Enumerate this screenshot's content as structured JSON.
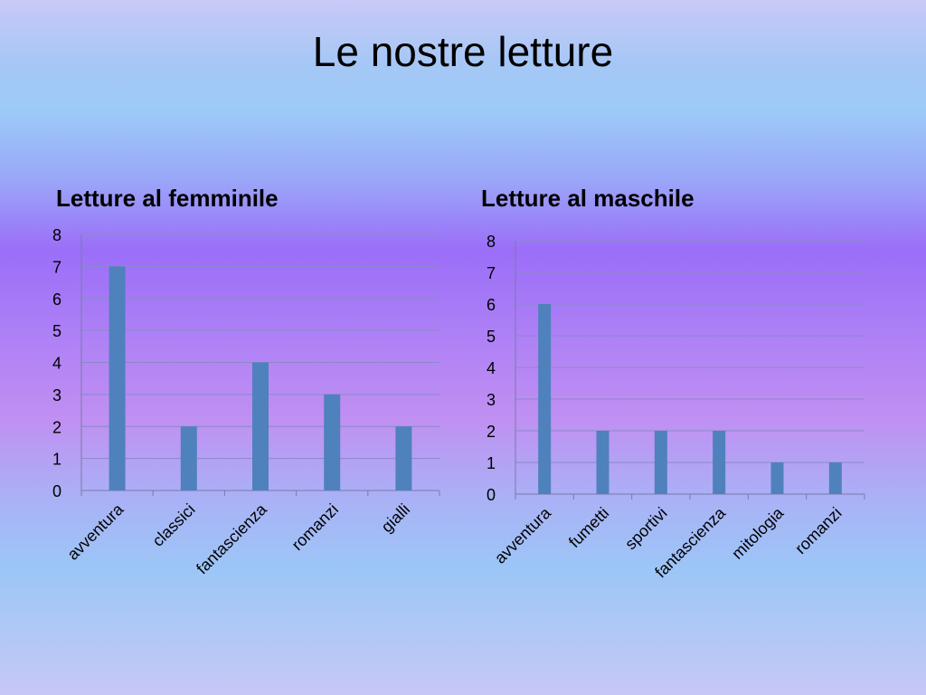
{
  "page": {
    "title": "Le nostre letture"
  },
  "chart_data": [
    {
      "type": "bar",
      "title": "Letture al femminile",
      "categories": [
        "avventura",
        "classici",
        "fantascienza",
        "romanzi",
        "gialli"
      ],
      "values": [
        7,
        2,
        4,
        3,
        2
      ],
      "ylim": [
        0,
        8
      ],
      "yticks": [
        0,
        1,
        2,
        3,
        4,
        5,
        6,
        7,
        8
      ],
      "grid": true,
      "bar_color": "#4f81bd"
    },
    {
      "type": "bar",
      "title": "Letture al maschile",
      "categories": [
        "avventura",
        "fumetti",
        "sportivi",
        "fantascienza",
        "mitologia",
        "romanzi"
      ],
      "values": [
        6,
        2,
        2,
        2,
        1,
        1
      ],
      "ylim": [
        0,
        8
      ],
      "yticks": [
        0,
        1,
        2,
        3,
        4,
        5,
        6,
        7,
        8
      ],
      "grid": true,
      "bar_color": "#4f81bd"
    }
  ]
}
